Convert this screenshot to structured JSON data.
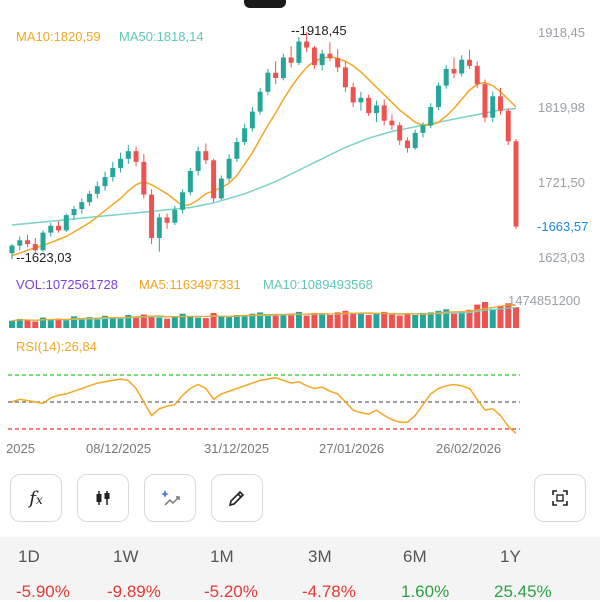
{
  "chart_data": {
    "type": "candlestick",
    "price_axis": {
      "ticks": [
        "1918,45",
        "1819,98",
        "1721,50",
        "1623,03"
      ],
      "current": "1663,57",
      "range": [
        1590,
        1945
      ]
    },
    "annotations": {
      "high": "1918,45",
      "low": "1623,03"
    },
    "ma_legend": {
      "ma10": "MA10:1820,59",
      "ma50": "MA50:1818,14"
    },
    "volume_legend": {
      "vol": "VOL:1072561728",
      "ma5": "MA5:1163497331",
      "ma10": "MA10:1089493568",
      "max": "1474851200"
    },
    "rsi_legend": {
      "label": "RSI(14):26,84"
    },
    "x_ticks": [
      "2025",
      "08/12/2025",
      "31/12/2025",
      "27/01/2026",
      "26/02/2026"
    ],
    "candles": [
      [
        1628,
        1640,
        1620,
        1638
      ],
      [
        1638,
        1650,
        1632,
        1645
      ],
      [
        1645,
        1652,
        1636,
        1640
      ],
      [
        1640,
        1648,
        1628,
        1632
      ],
      [
        1632,
        1658,
        1630,
        1655
      ],
      [
        1655,
        1668,
        1650,
        1664
      ],
      [
        1664,
        1670,
        1655,
        1658
      ],
      [
        1658,
        1680,
        1656,
        1678
      ],
      [
        1678,
        1690,
        1672,
        1686
      ],
      [
        1686,
        1700,
        1680,
        1695
      ],
      [
        1695,
        1710,
        1690,
        1706
      ],
      [
        1706,
        1722,
        1700,
        1716
      ],
      [
        1716,
        1735,
        1710,
        1728
      ],
      [
        1728,
        1748,
        1722,
        1740
      ],
      [
        1740,
        1760,
        1734,
        1752
      ],
      [
        1752,
        1770,
        1745,
        1762
      ],
      [
        1762,
        1768,
        1742,
        1748
      ],
      [
        1748,
        1758,
        1700,
        1705
      ],
      [
        1705,
        1712,
        1640,
        1648
      ],
      [
        1648,
        1680,
        1630,
        1675
      ],
      [
        1675,
        1680,
        1660,
        1668
      ],
      [
        1668,
        1690,
        1665,
        1685
      ],
      [
        1685,
        1712,
        1680,
        1708
      ],
      [
        1708,
        1740,
        1704,
        1736
      ],
      [
        1736,
        1768,
        1730,
        1762
      ],
      [
        1762,
        1772,
        1745,
        1750
      ],
      [
        1750,
        1752,
        1695,
        1700
      ],
      [
        1700,
        1730,
        1698,
        1726
      ],
      [
        1726,
        1758,
        1722,
        1752
      ],
      [
        1752,
        1780,
        1748,
        1774
      ],
      [
        1774,
        1798,
        1770,
        1792
      ],
      [
        1792,
        1820,
        1788,
        1814
      ],
      [
        1814,
        1845,
        1810,
        1840
      ],
      [
        1840,
        1870,
        1836,
        1865
      ],
      [
        1865,
        1880,
        1850,
        1858
      ],
      [
        1858,
        1890,
        1855,
        1885
      ],
      [
        1885,
        1900,
        1872,
        1878
      ],
      [
        1878,
        1912,
        1875,
        1906
      ],
      [
        1906,
        1918,
        1892,
        1898
      ],
      [
        1898,
        1900,
        1870,
        1875
      ],
      [
        1875,
        1895,
        1868,
        1890
      ],
      [
        1890,
        1905,
        1880,
        1884
      ],
      [
        1884,
        1896,
        1866,
        1872
      ],
      [
        1872,
        1880,
        1840,
        1846
      ],
      [
        1846,
        1852,
        1820,
        1826
      ],
      [
        1826,
        1840,
        1815,
        1832
      ],
      [
        1832,
        1836,
        1808,
        1812
      ],
      [
        1812,
        1828,
        1800,
        1822
      ],
      [
        1822,
        1830,
        1796,
        1802
      ],
      [
        1802,
        1810,
        1790,
        1796
      ],
      [
        1796,
        1800,
        1770,
        1776
      ],
      [
        1776,
        1780,
        1760,
        1766
      ],
      [
        1766,
        1790,
        1764,
        1786
      ],
      [
        1786,
        1800,
        1780,
        1796
      ],
      [
        1796,
        1825,
        1792,
        1820
      ],
      [
        1820,
        1852,
        1816,
        1848
      ],
      [
        1848,
        1875,
        1844,
        1870
      ],
      [
        1870,
        1885,
        1858,
        1864
      ],
      [
        1864,
        1888,
        1860,
        1882
      ],
      [
        1882,
        1895,
        1870,
        1874
      ],
      [
        1874,
        1880,
        1845,
        1850
      ],
      [
        1850,
        1856,
        1800,
        1806
      ],
      [
        1806,
        1840,
        1800,
        1834
      ],
      [
        1834,
        1845,
        1810,
        1815
      ],
      [
        1815,
        1818,
        1770,
        1775
      ],
      [
        1775,
        1778,
        1660,
        1663
      ]
    ],
    "ma10_values": [
      1625,
      1628,
      1632,
      1635,
      1638,
      1642,
      1646,
      1650,
      1656,
      1662,
      1668,
      1676,
      1684,
      1692,
      1700,
      1710,
      1718,
      1722,
      1718,
      1712,
      1706,
      1698,
      1690,
      1692,
      1698,
      1706,
      1710,
      1714,
      1720,
      1730,
      1745,
      1760,
      1778,
      1796,
      1812,
      1830,
      1846,
      1860,
      1872,
      1880,
      1884,
      1886,
      1884,
      1880,
      1874,
      1866,
      1856,
      1846,
      1836,
      1826,
      1816,
      1808,
      1800,
      1796,
      1796,
      1800,
      1808,
      1818,
      1830,
      1842,
      1850,
      1852,
      1848,
      1840,
      1830,
      1820
    ],
    "ma50_values": [
      1665,
      1666,
      1667,
      1668,
      1669,
      1670,
      1671,
      1672,
      1673,
      1674,
      1675,
      1676,
      1677,
      1678,
      1679,
      1680,
      1681,
      1682,
      1683,
      1684,
      1685,
      1686,
      1687,
      1688,
      1690,
      1692,
      1694,
      1697,
      1700,
      1703,
      1706,
      1710,
      1714,
      1718,
      1722,
      1727,
      1732,
      1737,
      1742,
      1747,
      1752,
      1757,
      1762,
      1767,
      1771,
      1775,
      1779,
      1782,
      1785,
      1788,
      1790,
      1792,
      1794,
      1796,
      1798,
      1800,
      1802,
      1804,
      1806,
      1808,
      1810,
      1812,
      1814,
      1816,
      1817,
      1818
    ],
    "volume_values": [
      0.28,
      0.35,
      0.3,
      0.25,
      0.4,
      0.32,
      0.36,
      0.3,
      0.45,
      0.38,
      0.42,
      0.33,
      0.47,
      0.4,
      0.36,
      0.5,
      0.44,
      0.52,
      0.48,
      0.4,
      0.36,
      0.43,
      0.55,
      0.46,
      0.4,
      0.38,
      0.58,
      0.45,
      0.42,
      0.5,
      0.48,
      0.55,
      0.6,
      0.46,
      0.52,
      0.5,
      0.56,
      0.62,
      0.48,
      0.58,
      0.52,
      0.5,
      0.6,
      0.66,
      0.55,
      0.58,
      0.5,
      0.54,
      0.62,
      0.52,
      0.48,
      0.56,
      0.5,
      0.58,
      0.6,
      0.66,
      0.72,
      0.55,
      0.62,
      0.7,
      0.9,
      1.0,
      0.74,
      0.86,
      0.95,
      0.8
    ],
    "rsi_values": [
      50,
      52,
      51,
      50,
      49,
      53,
      55,
      56,
      58,
      60,
      62,
      64,
      65,
      66,
      67,
      66,
      60,
      50,
      40,
      45,
      47,
      48,
      55,
      60,
      63,
      60,
      52,
      56,
      58,
      60,
      62,
      64,
      66,
      67,
      68,
      66,
      64,
      65,
      62,
      60,
      61,
      58,
      56,
      50,
      44,
      42,
      41,
      44,
      40,
      37,
      35,
      35,
      40,
      48,
      56,
      60,
      62,
      63,
      62,
      60,
      52,
      44,
      45,
      40,
      32,
      26.84
    ],
    "rsi_levels": [
      70,
      50,
      30
    ],
    "colors": {
      "up": "#26a69a",
      "down": "#ef5350",
      "ma10": "#f5a623",
      "ma50": "#7ad3c6",
      "rsi": "#f5a623",
      "price_axis": "#9aa0a6",
      "current": "#1e88e5",
      "vol_label": "#7b3fe4"
    }
  },
  "toolbar": {
    "tools": [
      "fx-icon",
      "candlestick-icon",
      "sparkle-chart-icon",
      "pencil-icon"
    ],
    "right": "fullscreen-icon"
  },
  "performance": [
    {
      "period": "1D",
      "value": "-5.90%",
      "dir": "down"
    },
    {
      "period": "1W",
      "value": "-9.89%",
      "dir": "down"
    },
    {
      "period": "1M",
      "value": "-5.20%",
      "dir": "down"
    },
    {
      "period": "3M",
      "value": "-4.78%",
      "dir": "down"
    },
    {
      "period": "6M",
      "value": "1.60%",
      "dir": "up"
    },
    {
      "period": "1Y",
      "value": "25.45%",
      "dir": "up"
    }
  ]
}
